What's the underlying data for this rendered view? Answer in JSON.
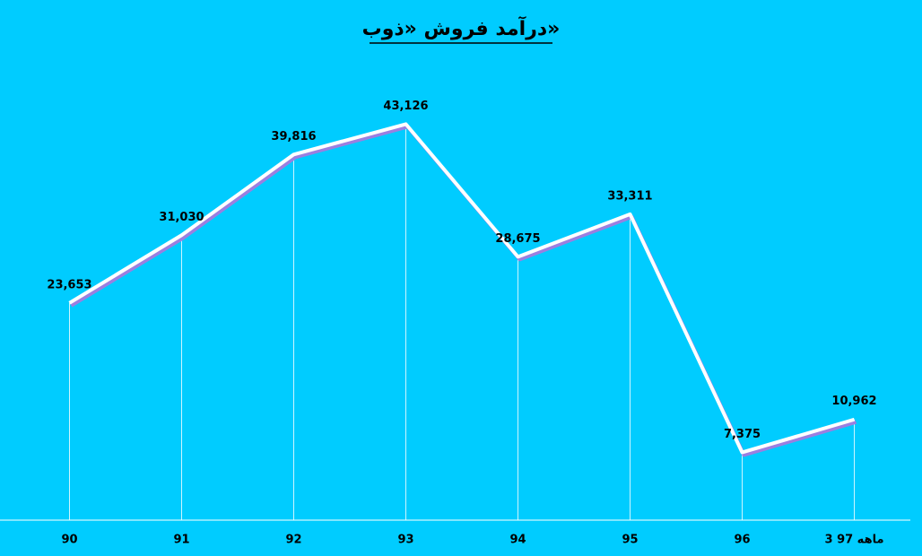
{
  "chart_data": {
    "type": "line",
    "title": "درآمد فروش «ذوب»",
    "categories": [
      "90",
      "91",
      "92",
      "93",
      "94",
      "95",
      "96",
      "3 ماهه 97"
    ],
    "values": [
      23653,
      31030,
      39816,
      43126,
      28675,
      33311,
      7375,
      10962
    ],
    "value_labels": [
      "23,653",
      "31,030",
      "39,816",
      "43,126",
      "28,675",
      "33,311",
      "7,375",
      "10,962"
    ],
    "color": "#ffffff",
    "ylim": [
      0,
      50000
    ],
    "drop_lines": true
  }
}
